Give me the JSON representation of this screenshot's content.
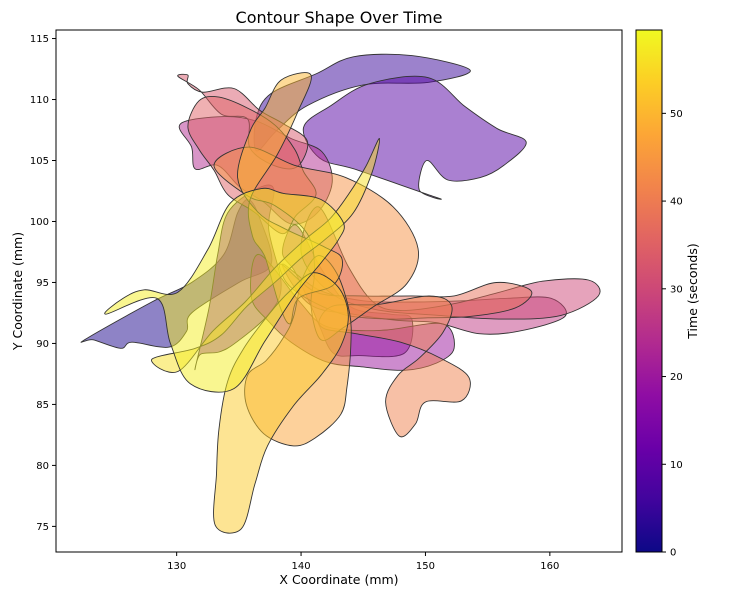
{
  "chart_data": {
    "type": "area",
    "title": "Contour Shape Over Time",
    "xlabel": "X Coordinate (mm)",
    "ylabel": "Y Coordinate (mm)",
    "xlim": [
      120.3,
      165.8
    ],
    "ylim": [
      72.9,
      115.7
    ],
    "x_ticks": [
      130,
      140,
      150,
      160
    ],
    "y_ticks": [
      75,
      80,
      85,
      90,
      95,
      100,
      105,
      110,
      115
    ],
    "grid": false,
    "colorbar": {
      "label": "Time (seconds)",
      "range": [
        0,
        59.5
      ],
      "ticks": [
        0,
        10,
        20,
        30,
        40,
        50
      ],
      "colormap": "plasma"
    },
    "fill_opacity": 0.5,
    "edge_color": "#333333",
    "series": [
      {
        "t": 2,
        "points": [
          [
            122.6,
            90.3
          ],
          [
            128,
            93.4
          ],
          [
            131.2,
            95
          ],
          [
            133.8,
            97.3
          ],
          [
            134.9,
            100.7
          ],
          [
            135.8,
            101.8
          ],
          [
            136.7,
            100.2
          ],
          [
            137.6,
            96.5
          ],
          [
            135,
            95
          ],
          [
            131.2,
            92.5
          ],
          [
            130.8,
            91
          ],
          [
            129.4,
            89.7
          ],
          [
            126.4,
            90.1
          ],
          [
            125.5,
            89.6
          ],
          [
            123.3,
            90.3
          ]
        ]
      },
      {
        "t": 5,
        "points": [
          [
            137.6,
            110.5
          ],
          [
            141.2,
            112.1
          ],
          [
            144.2,
            113.5
          ],
          [
            148.9,
            113.6
          ],
          [
            153.6,
            112.4
          ],
          [
            150.2,
            111.4
          ],
          [
            145,
            111.2
          ],
          [
            140.5,
            109.5
          ],
          [
            138,
            107.4
          ],
          [
            136.4,
            105.8
          ],
          [
            136.4,
            108.5
          ]
        ]
      },
      {
        "t": 9,
        "points": [
          [
            142.4,
            109.5
          ],
          [
            145.5,
            111.3
          ],
          [
            150.2,
            111.8
          ],
          [
            153.2,
            109.4
          ],
          [
            155.8,
            107.6
          ],
          [
            158.1,
            106.5
          ],
          [
            156.3,
            104.6
          ],
          [
            154.4,
            103.6
          ],
          [
            151.8,
            103.4
          ],
          [
            150.1,
            105
          ],
          [
            149.5,
            102.6
          ],
          [
            151.1,
            101.9
          ],
          [
            144.6,
            104.2
          ],
          [
            141.5,
            105.2
          ],
          [
            140.2,
            107.7
          ]
        ]
      },
      {
        "t": 13,
        "points": [
          [
            131.5,
            88
          ],
          [
            132.6,
            92.9
          ],
          [
            133.3,
            97.3
          ],
          [
            134.1,
            100.7
          ],
          [
            136.3,
            102.6
          ],
          [
            137.8,
            102.7
          ],
          [
            137.4,
            99.4
          ],
          [
            138.4,
            94.8
          ],
          [
            137.4,
            92.4
          ],
          [
            134.8,
            90.1
          ],
          [
            133.4,
            89.3
          ],
          [
            131.9,
            89.1
          ]
        ]
      },
      {
        "t": 18,
        "points": [
          [
            139.6,
            99.7
          ],
          [
            141.7,
            96
          ],
          [
            144,
            93
          ],
          [
            147.2,
            92.4
          ],
          [
            148.9,
            92
          ],
          [
            148.3,
            89.2
          ],
          [
            144.6,
            89
          ],
          [
            142.6,
            89.2
          ],
          [
            141.5,
            91.4
          ],
          [
            140.7,
            93.3
          ],
          [
            139.5,
            95.9
          ],
          [
            138.5,
            97.5
          ]
        ]
      },
      {
        "t": 20,
        "points": [
          [
            136.6,
            97.3
          ],
          [
            139.9,
            93.4
          ],
          [
            141.6,
            91.6
          ],
          [
            143.8,
            91.1
          ],
          [
            146.9,
            91.1
          ],
          [
            151.4,
            91.6
          ],
          [
            152.3,
            89.6
          ],
          [
            150.9,
            88.4
          ],
          [
            148.3,
            87.8
          ],
          [
            144.7,
            88.1
          ],
          [
            142,
            88.5
          ],
          [
            139.2,
            90.1
          ],
          [
            137.4,
            91.8
          ],
          [
            136,
            93.8
          ]
        ]
      },
      {
        "t": 24,
        "points": [
          [
            130.3,
            108
          ],
          [
            133.8,
            108.6
          ],
          [
            136.5,
            108.2
          ],
          [
            139.2,
            106.8
          ],
          [
            141.7,
            105.7
          ],
          [
            142.5,
            103.2
          ],
          [
            141.3,
            100.7
          ],
          [
            139.2,
            99.8
          ],
          [
            137,
            101.6
          ],
          [
            135.1,
            102.8
          ],
          [
            133.3,
            104.6
          ],
          [
            131.5,
            104.3
          ],
          [
            131.2,
            106.1
          ]
        ]
      },
      {
        "t": 27,
        "points": [
          [
            138.5,
            96.5
          ],
          [
            141.4,
            94.4
          ],
          [
            145,
            93.5
          ],
          [
            149.1,
            93.4
          ],
          [
            153,
            93.5
          ],
          [
            156.6,
            93.7
          ],
          [
            160.1,
            93.7
          ],
          [
            161.2,
            92.2
          ],
          [
            157.5,
            91
          ],
          [
            154.3,
            90.8
          ],
          [
            150.9,
            91.7
          ],
          [
            147.7,
            91.9
          ],
          [
            144.2,
            92.4
          ],
          [
            140.7,
            93.2
          ]
        ]
      },
      {
        "t": 30,
        "points": [
          [
            141.4,
            101.2
          ],
          [
            143.8,
            96.3
          ],
          [
            145.8,
            93.4
          ],
          [
            148,
            92.7
          ],
          [
            152,
            93.2
          ],
          [
            155.6,
            94.1
          ],
          [
            159.4,
            95.1
          ],
          [
            163.1,
            95.2
          ],
          [
            163.9,
            93.9
          ],
          [
            160.9,
            92.3
          ],
          [
            156.3,
            92
          ],
          [
            151.1,
            92.3
          ],
          [
            145.9,
            92.8
          ],
          [
            142.3,
            94.2
          ],
          [
            140,
            97.5
          ]
        ]
      },
      {
        "t": 33,
        "points": [
          [
            130.9,
            112
          ],
          [
            130.1,
            111.9
          ],
          [
            131.8,
            110.8
          ],
          [
            133.6,
            108.8
          ],
          [
            135.7,
            108.4
          ],
          [
            135.9,
            106
          ],
          [
            137.8,
            104.6
          ],
          [
            139.7,
            104.5
          ],
          [
            140.5,
            106.6
          ],
          [
            138.6,
            108
          ],
          [
            136.7,
            109.1
          ],
          [
            134.6,
            110.9
          ],
          [
            132.1,
            110.6
          ],
          [
            130.9,
            111.3
          ]
        ]
      },
      {
        "t": 35,
        "points": [
          [
            131.8,
            109.9
          ],
          [
            133.4,
            110.2
          ],
          [
            135.7,
            109.3
          ],
          [
            137.9,
            107.9
          ],
          [
            139.5,
            105.9
          ],
          [
            140.2,
            104.1
          ],
          [
            141.2,
            102.2
          ],
          [
            139.6,
            100.5
          ],
          [
            138.5,
            99
          ],
          [
            136.2,
            100.8
          ],
          [
            134.1,
            102.2
          ],
          [
            133,
            104.2
          ],
          [
            131.8,
            105.9
          ],
          [
            130.9,
            107.8
          ]
        ]
      },
      {
        "t": 38,
        "points": [
          [
            138.4,
            96.5
          ],
          [
            141.2,
            94.2
          ],
          [
            144.8,
            93.9
          ],
          [
            148.9,
            93.9
          ],
          [
            152.3,
            93.9
          ],
          [
            155.7,
            95
          ],
          [
            158.5,
            94.3
          ],
          [
            157.2,
            92.9
          ],
          [
            153.5,
            92.2
          ],
          [
            150.2,
            92.1
          ],
          [
            147.3,
            92
          ],
          [
            143.7,
            92.3
          ],
          [
            140.8,
            93.5
          ],
          [
            138.9,
            94.9
          ]
        ]
      },
      {
        "t": 41,
        "points": [
          [
            147.9,
            82.4
          ],
          [
            146.8,
            85.2
          ],
          [
            147.8,
            87.4
          ],
          [
            149.5,
            88.8
          ],
          [
            151.4,
            90.9
          ],
          [
            152.1,
            93.1
          ],
          [
            150.3,
            93.9
          ],
          [
            146.2,
            93.2
          ],
          [
            142.7,
            93.1
          ],
          [
            141.5,
            92
          ],
          [
            141.9,
            91.2
          ],
          [
            144.4,
            90.8
          ],
          [
            148,
            90.1
          ],
          [
            151.2,
            88.8
          ],
          [
            153.5,
            87.2
          ],
          [
            152.9,
            85.3
          ],
          [
            150,
            85.2
          ],
          [
            149.2,
            83.4
          ]
        ]
      },
      {
        "t": 44,
        "points": [
          [
            133,
            104.6
          ],
          [
            135.8,
            106.1
          ],
          [
            139.5,
            104.6
          ],
          [
            143.6,
            103.6
          ],
          [
            147.4,
            101.2
          ],
          [
            149.4,
            97.8
          ],
          [
            148.5,
            94.9
          ],
          [
            145.8,
            93
          ],
          [
            143.4,
            91.3
          ],
          [
            141.6,
            90.3
          ],
          [
            140.8,
            93.1
          ],
          [
            141.1,
            96.1
          ],
          [
            140.5,
            99
          ],
          [
            137.9,
            101.3
          ],
          [
            135.7,
            102.1
          ]
        ]
      },
      {
        "t": 47,
        "points": [
          [
            135.6,
            85
          ],
          [
            137,
            82.6
          ],
          [
            139.4,
            81.6
          ],
          [
            141.2,
            82.3
          ],
          [
            143.2,
            84.2
          ],
          [
            143.7,
            86.5
          ],
          [
            144,
            89.8
          ],
          [
            143.9,
            92.5
          ],
          [
            142.9,
            95.7
          ],
          [
            141.4,
            97.2
          ],
          [
            140.1,
            95.3
          ],
          [
            139.4,
            92.2
          ],
          [
            138.6,
            90.5
          ],
          [
            137.2,
            88.6
          ],
          [
            135.7,
            87.4
          ]
        ]
      },
      {
        "t": 50,
        "points": [
          [
            135.9,
            101.8
          ],
          [
            138.1,
            105.5
          ],
          [
            139.7,
            108.9
          ],
          [
            140.8,
            112
          ],
          [
            138.4,
            111.6
          ],
          [
            137.1,
            109.3
          ],
          [
            135.9,
            107.4
          ],
          [
            134.9,
            103.6
          ],
          [
            136.5,
            100.8
          ],
          [
            138.7,
            99.4
          ],
          [
            141.9,
            97.9
          ],
          [
            143.3,
            96.9
          ],
          [
            142.6,
            94.8
          ],
          [
            139.8,
            93.7
          ],
          [
            139.1,
            91.6
          ],
          [
            138.2,
            93.3
          ],
          [
            137.1,
            97.1
          ],
          [
            136.1,
            98.8
          ]
        ]
      },
      {
        "t": 53,
        "points": [
          [
            133.1,
            75.1
          ],
          [
            135.2,
            74.8
          ],
          [
            136.3,
            78.5
          ],
          [
            137.3,
            81.6
          ],
          [
            139.4,
            84.9
          ],
          [
            141.6,
            87.4
          ],
          [
            143.2,
            89.8
          ],
          [
            143.8,
            92.3
          ],
          [
            143,
            94.6
          ],
          [
            141,
            95.8
          ],
          [
            139.1,
            94.3
          ],
          [
            137.5,
            92.5
          ],
          [
            135.4,
            89.6
          ],
          [
            134.1,
            86.9
          ],
          [
            133.4,
            83
          ],
          [
            133.2,
            79.3
          ]
        ]
      },
      {
        "t": 56,
        "points": [
          [
            128,
            88.7
          ],
          [
            130.1,
            87.7
          ],
          [
            132.9,
            91
          ],
          [
            135.5,
            93.4
          ],
          [
            137.9,
            96.2
          ],
          [
            140.3,
            98.5
          ],
          [
            142.3,
            100.2
          ],
          [
            143.8,
            102.2
          ],
          [
            145.2,
            104.5
          ],
          [
            146.3,
            106.8
          ],
          [
            145.7,
            104
          ],
          [
            144.2,
            100.7
          ],
          [
            141.9,
            98.5
          ],
          [
            140,
            97
          ],
          [
            138,
            95.1
          ],
          [
            135.6,
            93
          ],
          [
            133.6,
            90.7
          ],
          [
            131.5,
            89.6
          ]
        ]
      },
      {
        "t": 58,
        "points": [
          [
            124.3,
            92.4
          ],
          [
            128.4,
            93.7
          ],
          [
            129.5,
            90
          ],
          [
            131.1,
            86.7
          ],
          [
            134.6,
            86.3
          ],
          [
            137.1,
            90.2
          ],
          [
            139.6,
            94.1
          ],
          [
            141.6,
            96.6
          ],
          [
            143,
            98.5
          ],
          [
            143.4,
            99.9
          ],
          [
            141.6,
            101.8
          ],
          [
            138.6,
            102.3
          ],
          [
            136.8,
            102.7
          ],
          [
            134.3,
            101.5
          ],
          [
            132.5,
            97.7
          ],
          [
            130.1,
            94.2
          ],
          [
            127.4,
            94.4
          ],
          [
            125.7,
            93.7
          ]
        ]
      }
    ]
  }
}
